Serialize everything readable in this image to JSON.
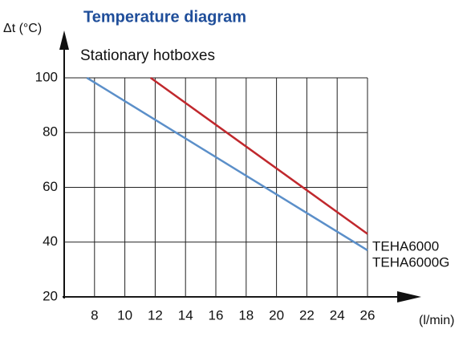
{
  "chart_data": {
    "type": "line",
    "title": "Temperature diagram",
    "subtitle": "Stationary hotboxes",
    "y_label": "Δt (°C)",
    "x_label": "(l/min)",
    "xlim": [
      6,
      26
    ],
    "xticks": [
      8,
      10,
      12,
      14,
      16,
      18,
      20,
      22,
      24,
      26
    ],
    "ylim": [
      20,
      100
    ],
    "yticks": [
      20,
      40,
      60,
      80,
      100
    ],
    "grid": true,
    "series": [
      {
        "name": "TEHA6000",
        "color": "#c0282d",
        "x": [
          11.7,
          26
        ],
        "values": [
          100,
          43
        ]
      },
      {
        "name": "TEHA6000G",
        "color": "#5b8fc9",
        "x": [
          7.5,
          26
        ],
        "values": [
          100,
          37
        ]
      }
    ]
  }
}
